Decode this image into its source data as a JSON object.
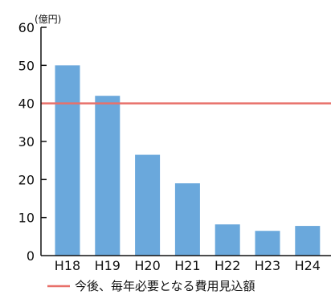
{
  "chart_data": {
    "type": "bar",
    "title": "(cut off at top edge — not readable)",
    "unit_label": "(億円)",
    "categories": [
      "H18",
      "H19",
      "H20",
      "H21",
      "H22",
      "H23",
      "H24"
    ],
    "values": [
      50,
      42,
      26.5,
      19,
      8.2,
      6.5,
      7.8
    ],
    "ylim": [
      0,
      60
    ],
    "yticks": [
      0,
      10,
      20,
      30,
      40,
      50,
      60
    ],
    "reference_line": {
      "value": 40,
      "label": "今後、毎年必要となる費用見込額",
      "color": "#e8706a"
    },
    "bar_color": "#6aa8dc",
    "grid": false,
    "legend_position": "bottom-left"
  }
}
